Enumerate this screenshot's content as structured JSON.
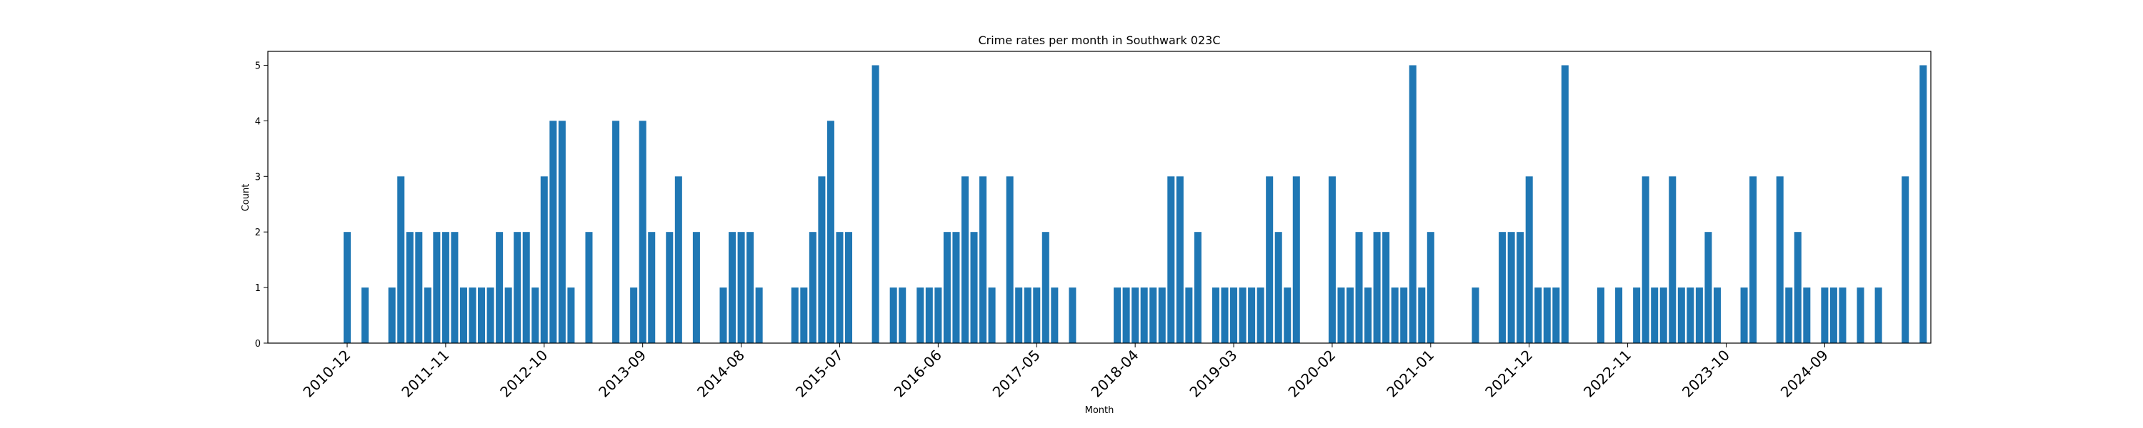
{
  "chart_data": {
    "type": "bar",
    "title": "Crime rates per month in Southwark 023C",
    "xlabel": "Month",
    "ylabel": "Count",
    "ylim": [
      0,
      5.25
    ],
    "yticks": [
      0,
      1,
      2,
      3,
      4,
      5
    ],
    "grid": false,
    "legend": "none",
    "bar_color": "#1f77b4",
    "x_start": "2010-12",
    "xtick_labels": [
      "2010-12",
      "2011-11",
      "2012-10",
      "2013-09",
      "2014-08",
      "2015-07",
      "2016-06",
      "2017-05",
      "2018-04",
      "2019-03",
      "2020-02",
      "2021-01",
      "2021-12",
      "2022-11",
      "2023-10",
      "2024-09"
    ],
    "values": [
      2,
      0,
      1,
      0,
      0,
      1,
      3,
      2,
      2,
      1,
      2,
      2,
      2,
      1,
      1,
      1,
      1,
      2,
      1,
      2,
      2,
      1,
      3,
      4,
      4,
      1,
      0,
      2,
      0,
      0,
      4,
      0,
      1,
      4,
      2,
      0,
      2,
      3,
      0,
      2,
      0,
      0,
      1,
      2,
      2,
      2,
      1,
      0,
      0,
      0,
      1,
      1,
      2,
      3,
      4,
      2,
      2,
      0,
      0,
      5,
      0,
      1,
      1,
      0,
      1,
      1,
      1,
      2,
      2,
      3,
      2,
      3,
      1,
      0,
      3,
      1,
      1,
      1,
      2,
      1,
      0,
      1,
      0,
      0,
      0,
      0,
      1,
      1,
      1,
      1,
      1,
      1,
      3,
      3,
      1,
      2,
      0,
      1,
      1,
      1,
      1,
      1,
      1,
      3,
      2,
      1,
      3,
      0,
      0,
      0,
      3,
      1,
      1,
      2,
      1,
      2,
      2,
      1,
      1,
      5,
      1,
      2,
      0,
      0,
      0,
      0,
      1,
      0,
      0,
      2,
      2,
      2,
      3,
      1,
      1,
      1,
      5,
      0,
      0,
      0,
      1,
      0,
      1,
      0,
      1,
      3,
      1,
      1,
      3,
      1,
      1,
      1,
      2,
      1,
      0,
      0,
      1,
      3,
      0,
      0,
      3,
      1,
      2,
      1,
      0,
      1,
      1,
      1,
      0,
      1,
      0,
      1,
      0,
      0,
      3,
      0,
      5
    ]
  }
}
